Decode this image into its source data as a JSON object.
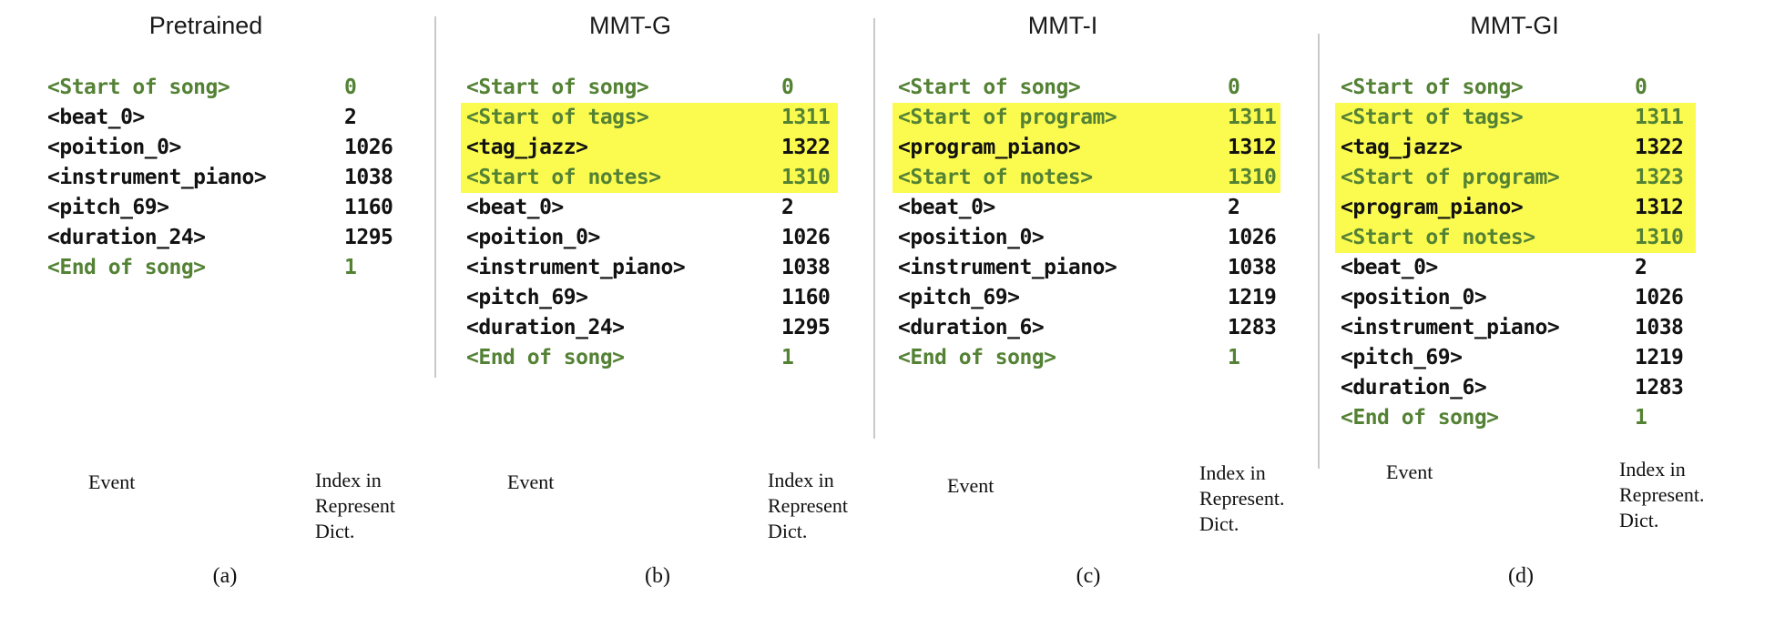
{
  "figure": {
    "colors": {
      "token_green": "#548235",
      "token_black": "#121212",
      "highlight_yellow": "#fbfb4f",
      "divider_gray": "#c9c9c9",
      "title_color": "#1a1a1a"
    },
    "panels": [
      {
        "id": "a",
        "title": "Pretrained",
        "caption": "(a)",
        "event_column_label": "Event",
        "index_column_label": "Index in\nRepresent\nDict.",
        "rows": [
          {
            "event": "<Start of song>",
            "index": "0",
            "color": "green",
            "highlight": false
          },
          {
            "event": "<beat_0>",
            "index": "2",
            "color": "black",
            "highlight": false
          },
          {
            "event": "<poition_0>",
            "index": "1026",
            "color": "black",
            "highlight": false
          },
          {
            "event": "<instrument_piano>",
            "index": "1038",
            "color": "black",
            "highlight": false
          },
          {
            "event": "<pitch_69>",
            "index": "1160",
            "color": "black",
            "highlight": false
          },
          {
            "event": "<duration_24>",
            "index": "1295",
            "color": "black",
            "highlight": false
          },
          {
            "event": "<End of song>",
            "index": "1",
            "color": "green",
            "highlight": false
          }
        ]
      },
      {
        "id": "b",
        "title": "MMT-G",
        "caption": "(b)",
        "event_column_label": "Event",
        "index_column_label": "Index in\nRepresent\nDict.",
        "rows": [
          {
            "event": "<Start of song>",
            "index": "0",
            "color": "green",
            "highlight": false
          },
          {
            "event": "<Start of tags>",
            "index": "1311",
            "color": "green",
            "highlight": true
          },
          {
            "event": "<tag_jazz>",
            "index": "1322",
            "color": "black",
            "highlight": true
          },
          {
            "event": "<Start of notes>",
            "index": "1310",
            "color": "green",
            "highlight": true
          },
          {
            "event": "<beat_0>",
            "index": "2",
            "color": "black",
            "highlight": false
          },
          {
            "event": "<poition_0>",
            "index": "1026",
            "color": "black",
            "highlight": false
          },
          {
            "event": "<instrument_piano>",
            "index": "1038",
            "color": "black",
            "highlight": false
          },
          {
            "event": "<pitch_69>",
            "index": "1160",
            "color": "black",
            "highlight": false
          },
          {
            "event": "<duration_24>",
            "index": "1295",
            "color": "black",
            "highlight": false
          },
          {
            "event": "<End of song>",
            "index": "1",
            "color": "green",
            "highlight": false
          }
        ]
      },
      {
        "id": "c",
        "title": "MMT-I",
        "caption": "(c)",
        "event_column_label": "Event",
        "index_column_label": "Index in\nRepresent.\nDict.",
        "rows": [
          {
            "event": "<Start of song>",
            "index": "0",
            "color": "green",
            "highlight": false
          },
          {
            "event": "<Start of program>",
            "index": "1311",
            "color": "green",
            "highlight": true
          },
          {
            "event": "<program_piano>",
            "index": "1312",
            "color": "black",
            "highlight": true
          },
          {
            "event": "<Start of notes>",
            "index": "1310",
            "color": "green",
            "highlight": true
          },
          {
            "event": "<beat_0>",
            "index": "2",
            "color": "black",
            "highlight": false
          },
          {
            "event": "<position_0>",
            "index": "1026",
            "color": "black",
            "highlight": false
          },
          {
            "event": "<instrument_piano>",
            "index": "1038",
            "color": "black",
            "highlight": false
          },
          {
            "event": "<pitch_69>",
            "index": "1219",
            "color": "black",
            "highlight": false
          },
          {
            "event": "<duration_6>",
            "index": "1283",
            "color": "black",
            "highlight": false
          },
          {
            "event": "<End of song>",
            "index": "1",
            "color": "green",
            "highlight": false
          }
        ]
      },
      {
        "id": "d",
        "title": "MMT-GI",
        "caption": "(d)",
        "event_column_label": "Event",
        "index_column_label": "Index in\nRepresent.\nDict.",
        "rows": [
          {
            "event": "<Start of song>",
            "index": "0",
            "color": "green",
            "highlight": false
          },
          {
            "event": "<Start of tags>",
            "index": "1311",
            "color": "green",
            "highlight": true
          },
          {
            "event": "<tag_jazz>",
            "index": "1322",
            "color": "black",
            "highlight": true
          },
          {
            "event": "<Start of program>",
            "index": "1323",
            "color": "green",
            "highlight": true
          },
          {
            "event": "<program_piano>",
            "index": "1312",
            "color": "black",
            "highlight": true
          },
          {
            "event": "<Start of notes>",
            "index": "1310",
            "color": "green",
            "highlight": true
          },
          {
            "event": "<beat_0>",
            "index": "2",
            "color": "black",
            "highlight": false
          },
          {
            "event": "<position_0>",
            "index": "1026",
            "color": "black",
            "highlight": false
          },
          {
            "event": "<instrument_piano>",
            "index": "1038",
            "color": "black",
            "highlight": false
          },
          {
            "event": "<pitch_69>",
            "index": "1219",
            "color": "black",
            "highlight": false
          },
          {
            "event": "<duration_6>",
            "index": "1283",
            "color": "black",
            "highlight": false
          },
          {
            "event": "<End of song>",
            "index": "1",
            "color": "green",
            "highlight": false
          }
        ]
      }
    ]
  }
}
